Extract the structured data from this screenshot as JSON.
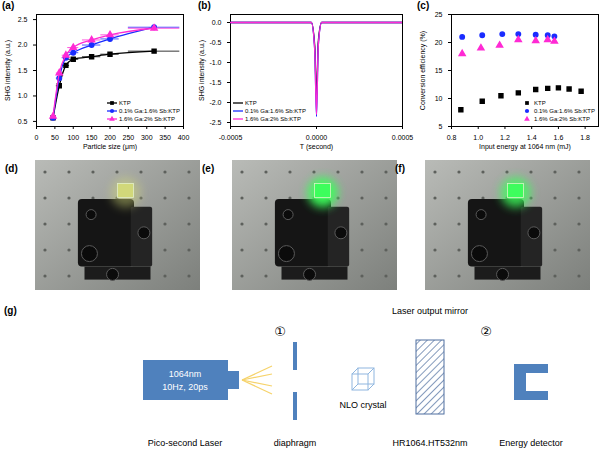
{
  "chart_data": [
    {
      "type": "line",
      "title": "(a)",
      "x_label": "Particle size (μm)",
      "y_label": "SHG intensity (a.u.)",
      "x": [
        45,
        62,
        80,
        100,
        150,
        200,
        320
      ],
      "x_errors": [
        3,
        8,
        10,
        15,
        25,
        25,
        70
      ],
      "series": [
        {
          "name": "KTP",
          "color": "#000000",
          "marker": "square",
          "values": [
            0.57,
            1.2,
            1.6,
            1.72,
            1.77,
            1.82,
            1.88
          ]
        },
        {
          "name": "0.1% Ga:1.6% Sb:KTP",
          "color": "#1a2cff",
          "marker": "circle",
          "values": [
            0.57,
            1.35,
            1.75,
            1.85,
            2.0,
            2.12,
            2.35
          ]
        },
        {
          "name": "1.6% Ga:2% Sb:KTP",
          "color": "#ff2ad4",
          "marker": "triangle",
          "values": [
            0.6,
            1.45,
            1.8,
            1.95,
            2.1,
            2.2,
            2.33
          ]
        }
      ],
      "xlim": [
        0,
        400
      ],
      "xticks": [
        0,
        50,
        100,
        150,
        200,
        250,
        300,
        350,
        400
      ],
      "ylim": [
        0.4,
        2.6
      ],
      "yticks": [
        0.5,
        {
          "value": 1,
          "label": "1.0"
        },
        1.5,
        {
          "value": 2,
          "label": "2.0"
        },
        2.5
      ],
      "grid": false,
      "legend": "lower right"
    },
    {
      "type": "line",
      "title": "(b)",
      "x_label": "T (second)",
      "y_label": "SHG intensity (a.u.)",
      "x": [
        -0.0005,
        -0.0003,
        -3e-05,
        -1e-05,
        0,
        1e-05,
        3e-05,
        0.0003,
        0.0005
      ],
      "series": [
        {
          "name": "KTP",
          "color": "#000000",
          "values": [
            0,
            0,
            0,
            -0.6,
            -1.9,
            -0.5,
            0,
            0,
            0
          ]
        },
        {
          "name": "0.1% Ga:1.6% Sb:KTP",
          "color": "#1a2cff",
          "values": [
            0,
            0,
            0,
            -0.7,
            -2.35,
            -0.6,
            0,
            0,
            0
          ]
        },
        {
          "name": "1.6% Ga:2% Sb:KTP",
          "color": "#ff2ad4",
          "values": [
            0,
            0,
            0,
            -0.7,
            -2.3,
            -0.6,
            0,
            0,
            0
          ]
        }
      ],
      "xlim": [
        -0.0005,
        0.0005
      ],
      "xticks": [
        -0.0005,
        {
          "value": 0,
          "label": "0.0000"
        },
        0.0005
      ],
      "ylim": [
        -2.6,
        0.2
      ],
      "yticks": [
        -2.5,
        {
          "value": -2,
          "label": "-2.0"
        },
        -1.5,
        {
          "value": -1,
          "label": "-1.0"
        },
        -0.5,
        {
          "value": 0,
          "label": "0.0"
        }
      ],
      "grid": false,
      "legend": "lower left"
    },
    {
      "type": "scatter",
      "title": "(c)",
      "x_label": "Input energy at 1064 nm (mJ)",
      "y_label": "Conversion efficiency (%)",
      "series": [
        {
          "name": "KTP",
          "color": "#000000",
          "marker": "square",
          "x": [
            0.87,
            1.03,
            1.17,
            1.3,
            1.43,
            1.52,
            1.6,
            1.68,
            1.77
          ],
          "values": [
            8,
            9.5,
            10.5,
            11,
            11.6,
            11.8,
            11.9,
            11.7,
            11.3
          ]
        },
        {
          "name": "0.1% Ga:1.6% Sb:KTP",
          "color": "#1a2cff",
          "marker": "circle",
          "x": [
            0.88,
            1.03,
            1.18,
            1.3,
            1.43,
            1.52,
            1.57
          ],
          "values": [
            21,
            21.3,
            21.5,
            21.5,
            21.4,
            21.3,
            21.1
          ]
        },
        {
          "name": "1.6% Ga:2% Sb:KTP",
          "color": "#ff2ad4",
          "marker": "triangle",
          "x": [
            0.88,
            1.02,
            1.16,
            1.3,
            1.43,
            1.52,
            1.57
          ],
          "values": [
            18,
            19,
            19.5,
            20.5,
            20.3,
            20.5,
            20.2
          ]
        }
      ],
      "xlim": [
        0.8,
        1.9
      ],
      "xticks": [
        0.8,
        {
          "value": 1,
          "label": "1.0"
        },
        1.2,
        1.4,
        1.6,
        1.8
      ],
      "ylim": [
        5,
        25
      ],
      "yticks": [
        5,
        10,
        15,
        20,
        25
      ],
      "grid": false,
      "legend": "lower right"
    }
  ],
  "photos": {
    "labels": [
      "(d)",
      "(e)",
      "(f)"
    ]
  },
  "diagram": {
    "label": "(g)",
    "laser": {
      "lines": [
        "1064nm",
        "10Hz, 20ps"
      ],
      "label": "Pico-second Laser"
    },
    "positions": [
      "①",
      "②"
    ],
    "diaphragm": "diaphragm",
    "crystal": "NLO crystal",
    "mirror": {
      "title": "Laser output mirror",
      "label": "HR1064.HT532nm"
    },
    "detector": "Energy detector"
  }
}
